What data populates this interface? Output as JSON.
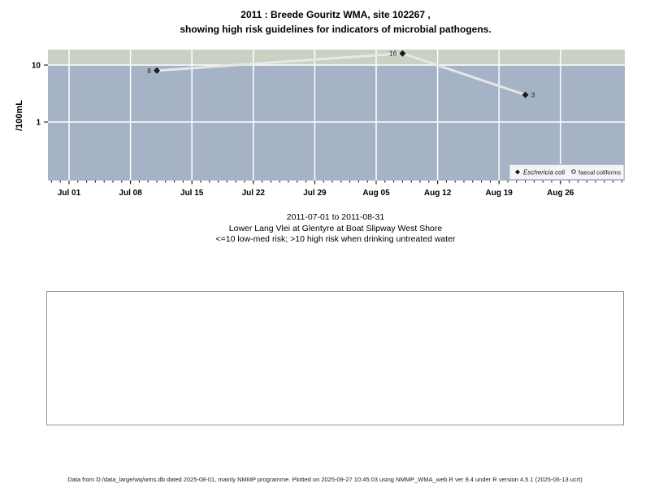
{
  "chart_data": {
    "type": "line",
    "title": "2011 : Breede Gouritz WMA, site 102267 ,",
    "subtitle": "showing high risk guidelines for indicators of microbial pathogens.",
    "ylabel": "/100mL",
    "y_scale": "log",
    "ylim": [
      0.095,
      21
    ],
    "x_range": [
      "2011-06-29",
      "2011-09-02"
    ],
    "x_ticks": [
      {
        "date": "2011-07-01",
        "label": "Jul 01"
      },
      {
        "date": "2011-07-08",
        "label": "Jul 08"
      },
      {
        "date": "2011-07-15",
        "label": "Jul 15"
      },
      {
        "date": "2011-07-22",
        "label": "Jul 22"
      },
      {
        "date": "2011-07-29",
        "label": "Jul 29"
      },
      {
        "date": "2011-08-05",
        "label": "Aug 05"
      },
      {
        "date": "2011-08-12",
        "label": "Aug 12"
      },
      {
        "date": "2011-08-19",
        "label": "Aug 19"
      },
      {
        "date": "2011-08-26",
        "label": "Aug 26"
      }
    ],
    "y_ticks": [
      {
        "value": 10,
        "label": "10"
      },
      {
        "value": 1,
        "label": "1"
      }
    ],
    "high_risk_band": {
      "from": 10,
      "meaning": ">10 high risk region shaded green"
    },
    "series": [
      {
        "name": "Eschericia coli",
        "marker": "filled-diamond",
        "points": [
          {
            "date": "2011-07-11",
            "value": 8,
            "label": "8",
            "label_side": "left"
          },
          {
            "date": "2011-08-08",
            "value": 16,
            "label": "16",
            "label_side": "left"
          },
          {
            "date": "2011-08-22",
            "value": 3,
            "label": "3",
            "label_side": "right"
          }
        ]
      },
      {
        "name": "faecal coliforms",
        "marker": "open-circle",
        "points": []
      }
    ],
    "legend": [
      {
        "label": "Eschericia coli",
        "marker": "filled-diamond",
        "italic": true
      },
      {
        "label": "faecal coliforms",
        "marker": "open-circle",
        "italic": false
      }
    ],
    "legend_position": "bottom-right",
    "grid": true,
    "colors": {
      "plot_bg": "#a6b3c7",
      "band": "#c8d1c2",
      "grid": "#ffffff",
      "line": "#e7e7e5",
      "marker": "#1b1b1b",
      "legend_bg": "#f2f4f7",
      "legend_border": "#b8bec8"
    }
  },
  "caption": {
    "line1": "2011-07-01 to 2011-08-31",
    "line2": "Lower Lang Vlei at Glentyre at Boat Slipway West Shore",
    "line3": "<=10 low-med risk; >10 high risk when drinking untreated water"
  },
  "footer": {
    "text": "Data from D:/data_large/wq/wms.db dated 2025-08-01, mainly NMMP programme. Plotted on 2025-09-27 10:45:03 using NMMP_WMA_web.R ver 9.4 under R version 4.5.1 (2025-06-13 ucrt)"
  }
}
